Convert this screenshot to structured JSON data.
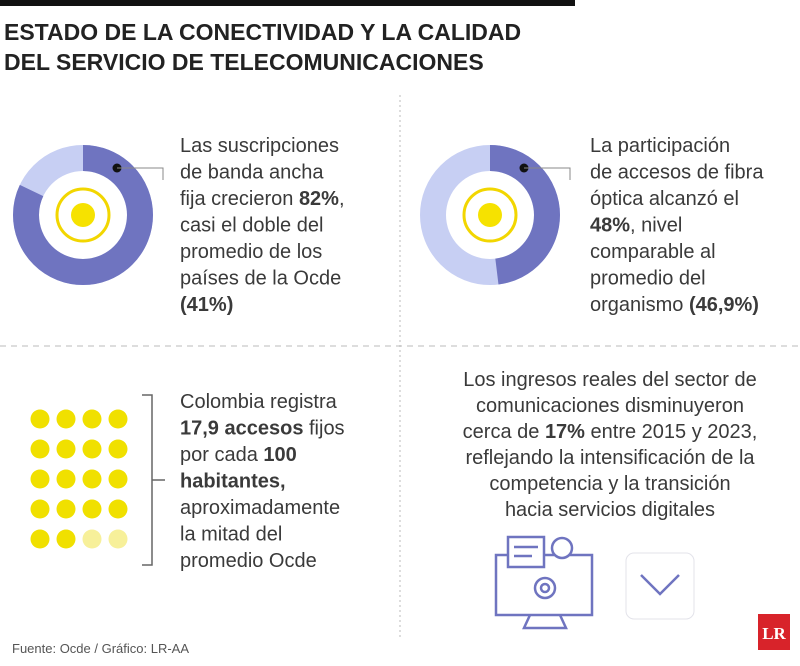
{
  "title": [
    "ESTADO DE LA CONECTIVIDAD Y LA CALIDAD",
    "DEL SERVICIO DE TELECOMUNICACIONES"
  ],
  "panels": [
    {
      "donut_value": 82,
      "lines": [
        [
          {
            "text": "Las suscripciones"
          }
        ],
        [
          {
            "text": "de banda ancha"
          }
        ],
        [
          {
            "text": "fija crecieron "
          },
          {
            "text": "82%",
            "bold": true
          },
          {
            "text": ","
          }
        ],
        [
          {
            "text": "casi el doble del"
          }
        ],
        [
          {
            "text": "promedio de los"
          }
        ],
        [
          {
            "text": "países de la Ocde"
          }
        ],
        [
          {
            "text": "(41%)",
            "bold": true
          }
        ]
      ]
    },
    {
      "donut_value": 48,
      "lines": [
        [
          {
            "text": "La participación"
          }
        ],
        [
          {
            "text": "de accesos de fibra"
          }
        ],
        [
          {
            "text": "óptica alcanzó el"
          }
        ],
        [
          {
            "text": "48%",
            "bold": true
          },
          {
            "text": ", nivel"
          }
        ],
        [
          {
            "text": "comparable al"
          }
        ],
        [
          {
            "text": "promedio del"
          }
        ],
        [
          {
            "text": "organismo "
          },
          {
            "text": "(46,9%)",
            "bold": true
          }
        ]
      ]
    },
    {
      "lines": [
        [
          {
            "text": "Colombia registra"
          }
        ],
        [
          {
            "text": "17,9 accesos",
            "bold": true
          },
          {
            "text": " fijos"
          }
        ],
        [
          {
            "text": "por cada "
          },
          {
            "text": "100",
            "bold": true
          }
        ],
        [
          {
            "text": "habitantes,",
            "bold": true
          }
        ],
        [
          {
            "text": "aproximadamente"
          }
        ],
        [
          {
            "text": "la mitad del"
          }
        ],
        [
          {
            "text": "promedio Ocde"
          }
        ]
      ]
    },
    {
      "lines": [
        [
          {
            "text": "Los ingresos reales del sector de"
          }
        ],
        [
          {
            "text": "comunicaciones disminuyeron"
          }
        ],
        [
          {
            "text": "cerca de "
          },
          {
            "text": "17%",
            "bold": true
          },
          {
            "text": " entre 2015 y 2023,"
          }
        ],
        [
          {
            "text": "reflejando la intensificación de la"
          }
        ],
        [
          {
            "text": "competencia y la transición"
          }
        ],
        [
          {
            "text": "hacia servicios digitales"
          }
        ]
      ]
    }
  ],
  "source": "Fuente: Ocde / Gráfico: LR-AA",
  "logo": "LR"
}
